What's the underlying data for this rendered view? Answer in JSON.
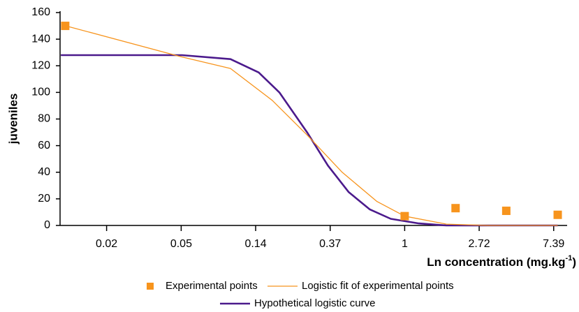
{
  "chart_data": {
    "type": "line",
    "ylabel": "juveniles",
    "xlabel": [
      "Ln concentration (mg.kg",
      "-1",
      ")"
    ],
    "xscale": "log",
    "xlim": [
      0.0098,
      8.85
    ],
    "xticks": [
      {
        "value": 0.0183,
        "label": "0.02"
      },
      {
        "value": 0.0498,
        "label": "0.05"
      },
      {
        "value": 0.1353,
        "label": "0.14"
      },
      {
        "value": 0.3679,
        "label": "0.37"
      },
      1,
      {
        "value": 2.7183,
        "label": "2.72"
      },
      {
        "value": 7.3891,
        "label": "7.39"
      }
    ],
    "ylim": [
      0,
      160
    ],
    "yticks": [
      0,
      20,
      40,
      60,
      80,
      100,
      120,
      140,
      160
    ],
    "series": [
      {
        "name": "Experimental points",
        "style": "marker",
        "color": "#f7941d",
        "x": [
          0.0105,
          1,
          1.98,
          3.91,
          7.8
        ],
        "values": [
          150,
          7,
          13,
          11,
          8
        ]
      },
      {
        "name": "Logistic fit of experimental points",
        "style": "line",
        "color": "#f7941d",
        "width": 1.3,
        "x": [
          0.0106,
          0.0489,
          0.0965,
          0.169,
          0.27,
          0.432,
          0.69,
          1,
          1.75,
          3.07,
          7.8
        ],
        "values": [
          150,
          127,
          118,
          94,
          68,
          40,
          18,
          7,
          1,
          0,
          0
        ]
      },
      {
        "name": "Hypothetical logistic curve",
        "style": "line",
        "color": "#4b1a8c",
        "width": 2.6,
        "x": [
          0.0099,
          0.0503,
          0.0965,
          0.141,
          0.186,
          0.27,
          0.357,
          0.472,
          0.627,
          0.83,
          1.21,
          1.75,
          7.8
        ],
        "values": [
          128,
          128,
          125,
          115,
          100,
          70,
          45,
          25,
          12,
          5,
          1.5,
          0,
          0
        ]
      }
    ]
  }
}
